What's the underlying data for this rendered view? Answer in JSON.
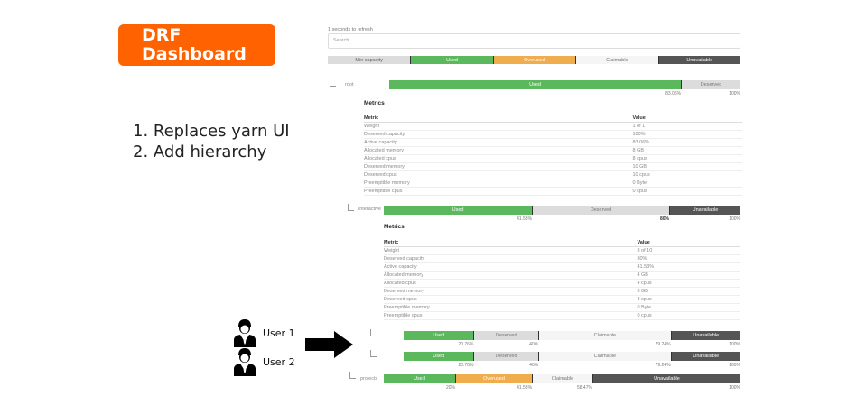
{
  "slide": {
    "logo_line1": "DRF",
    "logo_line2": "Dashboard",
    "points": [
      "1. Replaces yarn UI",
      "2. Add hierarchy"
    ],
    "users": [
      "User 1",
      "User 2"
    ]
  },
  "dashboard": {
    "refresh_text": "1 seconds to refresh",
    "search_placeholder": "Search",
    "legend": [
      {
        "label": "Min capacity",
        "type": "min"
      },
      {
        "label": "Used",
        "type": "used"
      },
      {
        "label": "Overused",
        "type": "overused"
      },
      {
        "label": "Claimable",
        "type": "claimable"
      },
      {
        "label": "Unavailable",
        "type": "unavailable"
      }
    ],
    "colors": {
      "used": "#5cb85c",
      "overused": "#f0ad4e",
      "deserved": "#dcdcdc",
      "claimable": "#f5f5f5",
      "unavailable": "#555555",
      "brand": "#ff6200"
    },
    "metrics_title": "Metrics",
    "metric_header": "Metric",
    "value_header": "Value",
    "queues": [
      {
        "name": "root",
        "segments": [
          {
            "label": "Used",
            "type": "used",
            "from": 0,
            "to": 83.06
          },
          {
            "label": "Deserved",
            "type": "deserved",
            "from": 83.06,
            "to": 100
          }
        ],
        "ticks": [
          "83.06%",
          "100%"
        ],
        "tick_values": [
          83.06,
          100
        ],
        "metrics": [
          [
            "Weight",
            "1 of 1"
          ],
          [
            "Deserved capacity",
            "100%"
          ],
          [
            "Active capacity",
            "83.06%"
          ],
          [
            "Allocated memory",
            "8 GB"
          ],
          [
            "Allocated cpus",
            "8 cpus"
          ],
          [
            "Deserved memory",
            "10 GB"
          ],
          [
            "Deserved cpus",
            "10 cpus"
          ],
          [
            "Preemptible memory",
            "0 Byte"
          ],
          [
            "Preemptible cpus",
            "0 cpus"
          ]
        ]
      },
      {
        "name": "interactive",
        "segments": [
          {
            "label": "Used",
            "type": "used",
            "from": 0,
            "to": 41.53
          },
          {
            "label": "Deserved",
            "type": "deserved",
            "from": 41.53,
            "to": 80
          },
          {
            "label": "Unavailable",
            "type": "unavailable",
            "from": 80,
            "to": 100
          }
        ],
        "ticks": [
          "41.53%",
          "80%",
          "100%"
        ],
        "tick_values": [
          41.53,
          80,
          100
        ],
        "metrics": [
          [
            "Weight",
            "8 of 10"
          ],
          [
            "Deserved capacity",
            "80%"
          ],
          [
            "Active capacity",
            "41.53%"
          ],
          [
            "Allocated memory",
            "4 GB"
          ],
          [
            "Allocated cpus",
            "4 cpus"
          ],
          [
            "Deserved memory",
            "8 GB"
          ],
          [
            "Deserved cpus",
            "8 cpus"
          ],
          [
            "Preemptible memory",
            "0 Byte"
          ],
          [
            "Preemptible cpus",
            "0 cpus"
          ]
        ]
      },
      {
        "name": "",
        "segments": [
          {
            "label": "Used",
            "type": "used",
            "from": 0,
            "to": 20.76
          },
          {
            "label": "Deserved",
            "type": "deserved",
            "from": 20.76,
            "to": 40
          },
          {
            "label": "Claimable",
            "type": "claimable",
            "from": 40,
            "to": 79.24
          },
          {
            "label": "Unavailable",
            "type": "unavailable",
            "from": 79.24,
            "to": 100
          }
        ],
        "ticks": [
          "20.76%",
          "40%",
          "79.24%",
          "100%"
        ],
        "tick_values": [
          20.76,
          40,
          79.24,
          100
        ]
      },
      {
        "name": "",
        "segments": [
          {
            "label": "Used",
            "type": "used",
            "from": 0,
            "to": 20.76
          },
          {
            "label": "Deserved",
            "type": "deserved",
            "from": 20.76,
            "to": 40
          },
          {
            "label": "Claimable",
            "type": "claimable",
            "from": 40,
            "to": 79.24
          },
          {
            "label": "Unavailable",
            "type": "unavailable",
            "from": 79.24,
            "to": 100
          }
        ],
        "ticks": [
          "20.76%",
          "40%",
          "79.24%",
          "100%"
        ],
        "tick_values": [
          20.76,
          40,
          79.24,
          100
        ]
      },
      {
        "name": "projects",
        "segments": [
          {
            "label": "Used",
            "type": "used",
            "from": 0,
            "to": 20
          },
          {
            "label": "Overused",
            "type": "overused",
            "from": 20,
            "to": 41.53
          },
          {
            "label": "Claimable",
            "type": "claimable",
            "from": 41.53,
            "to": 58.47
          },
          {
            "label": "Unavailable",
            "type": "unavailable",
            "from": 58.47,
            "to": 100
          }
        ],
        "ticks": [
          "20%",
          "41.53%",
          "58.47%",
          "100%"
        ],
        "tick_values": [
          20,
          41.53,
          58.47,
          100
        ]
      }
    ]
  }
}
